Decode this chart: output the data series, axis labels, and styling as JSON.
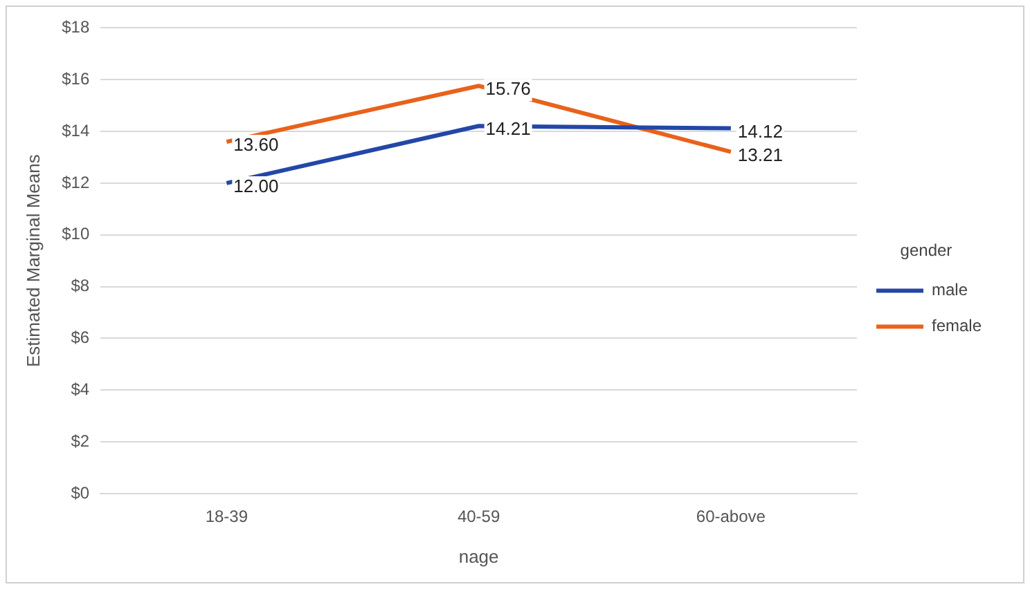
{
  "chart_data": {
    "type": "line",
    "xlabel": "nage",
    "ylabel": "Estimated Marginal Means",
    "legend_title": "gender",
    "categories": [
      "18-39",
      "40-59",
      "60-above"
    ],
    "series": [
      {
        "name": "male",
        "color": "#2347a8",
        "values": [
          12.0,
          14.21,
          14.12
        ],
        "value_labels": [
          "12.00",
          "14.21",
          "14.12"
        ]
      },
      {
        "name": "female",
        "color": "#e8621c",
        "values": [
          13.6,
          15.76,
          13.21
        ],
        "value_labels": [
          "13.60",
          "15.76",
          "13.21"
        ]
      }
    ],
    "ylim": [
      0,
      18
    ],
    "yticks": [
      {
        "value": 0,
        "label": "$0"
      },
      {
        "value": 2,
        "label": "$2"
      },
      {
        "value": 4,
        "label": "$4"
      },
      {
        "value": 6,
        "label": "$6"
      },
      {
        "value": 8,
        "label": "$8"
      },
      {
        "value": 10,
        "label": "$10"
      },
      {
        "value": 12,
        "label": "$12"
      },
      {
        "value": 14,
        "label": "$14"
      },
      {
        "value": 16,
        "label": "$16"
      },
      {
        "value": 18,
        "label": "$18"
      }
    ],
    "grid": "y",
    "legend": "right",
    "marker": "none",
    "line_style": "solid"
  }
}
